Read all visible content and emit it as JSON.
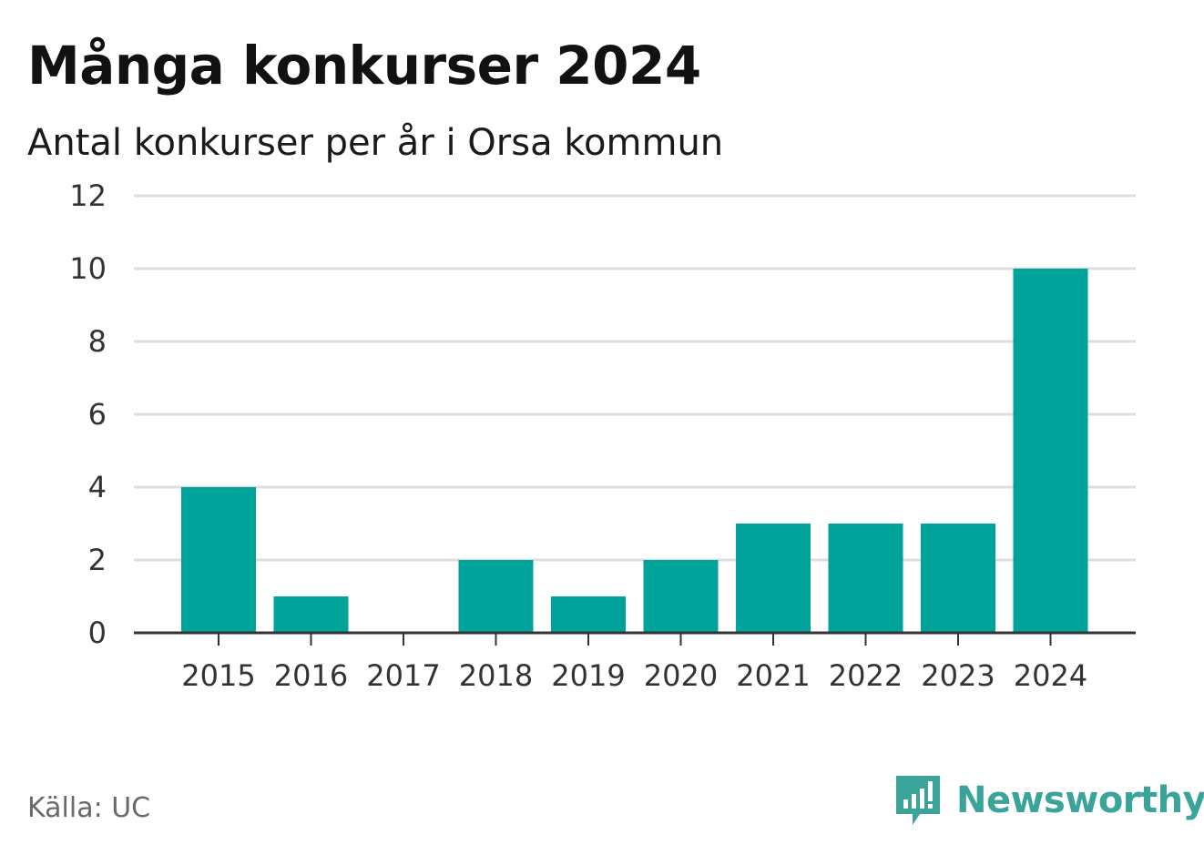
{
  "title": "Många konkurser 2024",
  "subtitle": "Antal konkurser per år i Orsa kommun",
  "source": "Källa: UC",
  "brand": {
    "name": "Newsworthy",
    "icon": "newsworthy-logo-icon",
    "color": "#3aa39a"
  },
  "chart_data": {
    "type": "bar",
    "categories": [
      "2015",
      "2016",
      "2017",
      "2018",
      "2019",
      "2020",
      "2021",
      "2022",
      "2023",
      "2024"
    ],
    "values": [
      4,
      1,
      0,
      2,
      1,
      2,
      3,
      3,
      3,
      10
    ],
    "title": "Många konkurser 2024",
    "subtitle": "Antal konkurser per år i Orsa kommun",
    "xlabel": "",
    "ylabel": "",
    "ylim": [
      0,
      12
    ],
    "yticks": [
      0,
      2,
      4,
      6,
      8,
      10,
      12
    ],
    "grid": true,
    "bar_color": "#00a39a"
  }
}
